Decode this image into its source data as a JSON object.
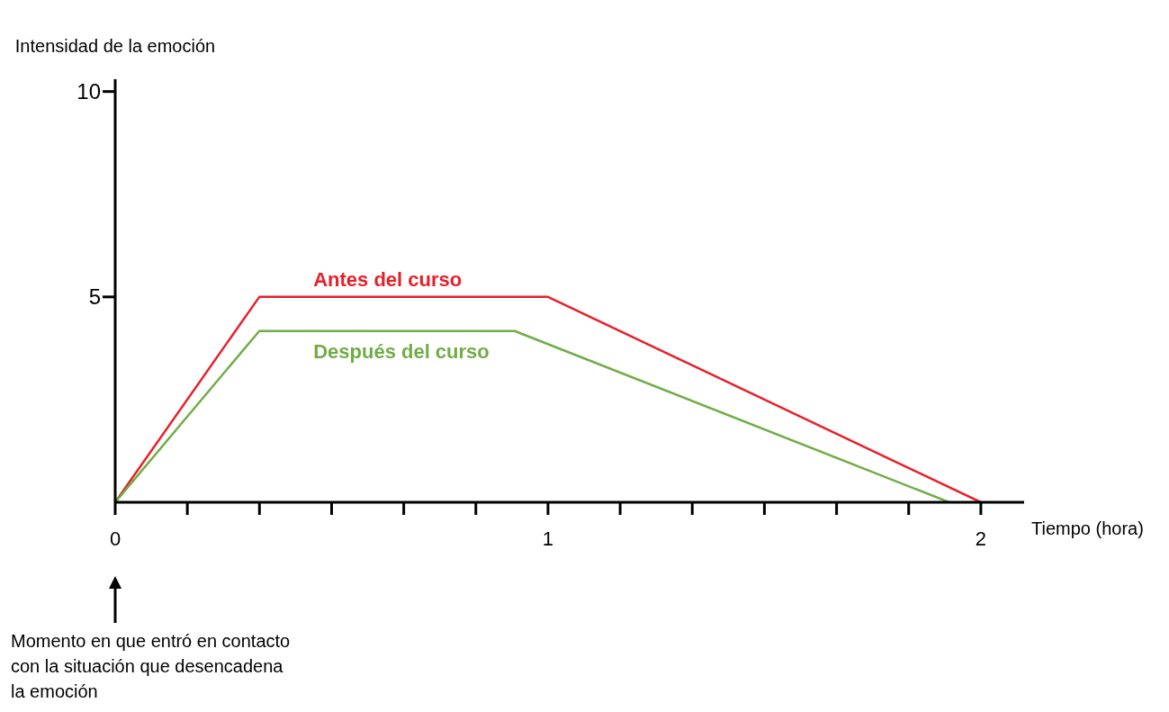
{
  "chart_data": {
    "type": "line",
    "xlabel": "Tiempo (hora)",
    "ylabel": "Intensidad de la emoción",
    "xlim": [
      0,
      2.1
    ],
    "ylim": [
      0,
      10.3
    ],
    "xticks": [
      0,
      {
        "value": 0.1667,
        "label": null
      },
      {
        "value": 0.3333,
        "label": null
      },
      {
        "value": 0.5,
        "label": null
      },
      {
        "value": 0.6667,
        "label": null
      },
      {
        "value": 0.8333,
        "label": null
      },
      1,
      {
        "value": 1.1667,
        "label": null
      },
      {
        "value": 1.3333,
        "label": null
      },
      {
        "value": 1.5,
        "label": null
      },
      {
        "value": 1.6667,
        "label": null
      },
      {
        "value": 1.8333,
        "label": null
      },
      2
    ],
    "yticks": [
      5,
      10
    ],
    "series": [
      {
        "name": "Antes del curso",
        "color": "#e8202a",
        "x": [
          0,
          0.333,
          1,
          2
        ],
        "values": [
          0,
          5,
          5,
          0
        ]
      },
      {
        "name": "Después del curso",
        "color": "#70ad47",
        "x": [
          0,
          0.333,
          0.923,
          1.927
        ],
        "values": [
          0,
          4.17,
          4.17,
          0
        ]
      }
    ],
    "annotations": [
      "Momento en que entró en contacto con la situación que desencadena la emoción"
    ],
    "grid": false,
    "legend": false,
    "marker": "none",
    "line_style": "solid"
  }
}
